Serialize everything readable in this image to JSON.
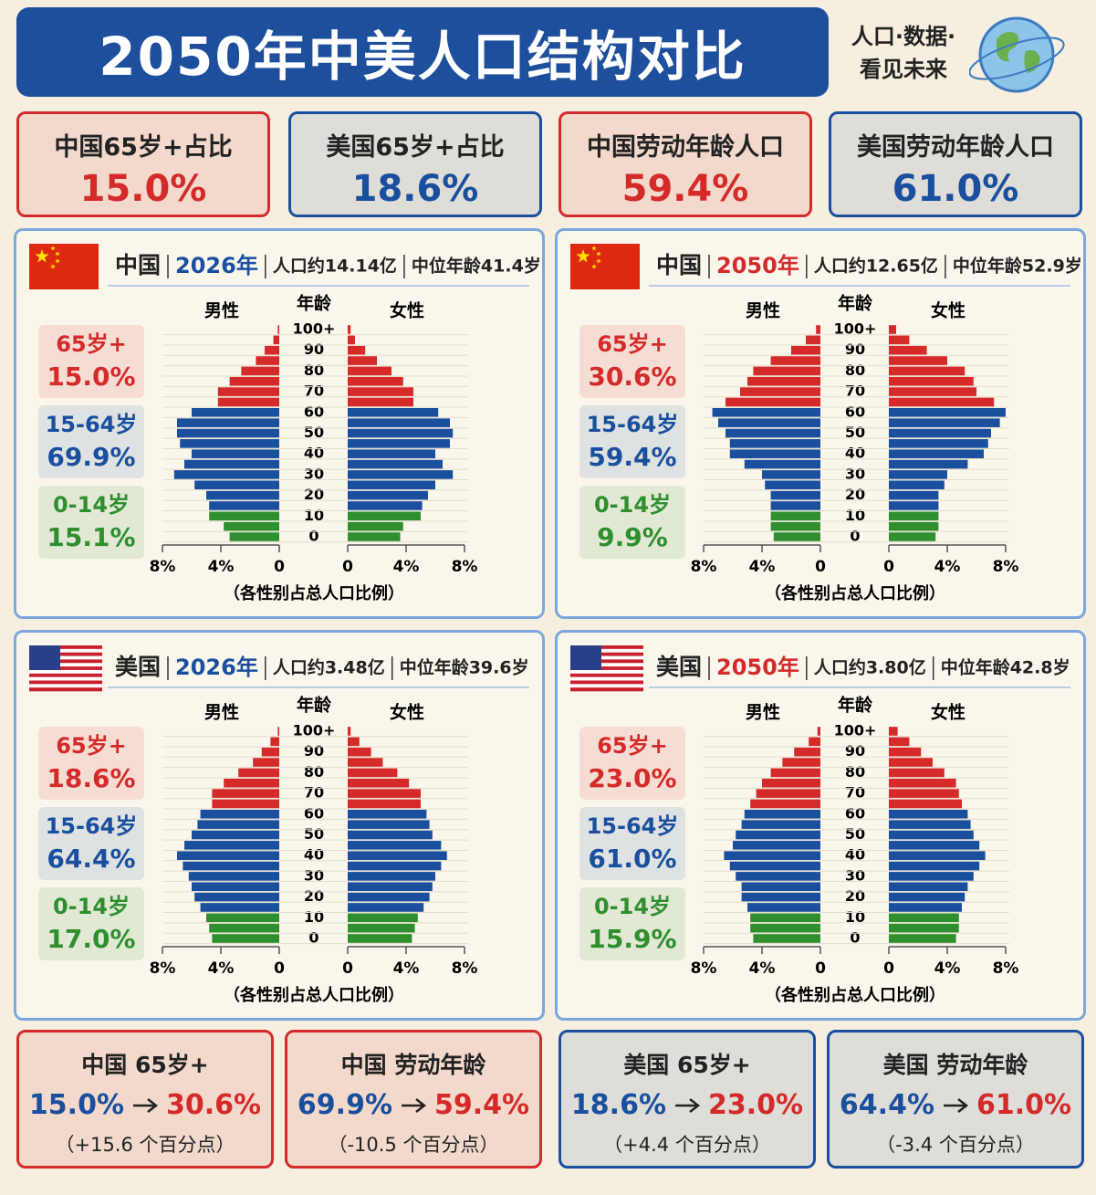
{
  "header": {
    "title": "2050年中美人口结构对比",
    "tagline": [
      "人口·数据·",
      "看见未来"
    ]
  },
  "kpis": [
    {
      "label": "中国65岁+占比",
      "value": "15.0%",
      "color": "#d42a2a"
    },
    {
      "label": "美国65岁+占比",
      "value": "18.6%",
      "color": "#1a4f9e"
    },
    {
      "label": "中国劳动年龄人口",
      "value": "59.4%",
      "color": "#d42a2a"
    },
    {
      "label": "美国劳动年龄人口",
      "value": "61.0%",
      "color": "#1a4f9e"
    }
  ],
  "chart_data": [
    {
      "type": "pyramid",
      "flag": "china",
      "country": "中国",
      "year": "2026年",
      "year_color": "#1a4f9e",
      "population": "人口约14.14亿",
      "median_age": "中位年龄41.4岁",
      "age_label": "年龄",
      "x_label": "（各性别占总人口比例）",
      "categories": [
        "0",
        null,
        "10",
        null,
        "20",
        null,
        "30",
        null,
        "40",
        null,
        "50",
        null,
        "60",
        null,
        "70",
        null,
        "80",
        null,
        "90",
        null,
        "100+"
      ],
      "colors": [
        "#2f8f2f",
        "#2f8f2f",
        "#2f8f2f",
        "#1a4f9e",
        "#1a4f9e",
        "#1a4f9e",
        "#1a4f9e",
        "#1a4f9e",
        "#1a4f9e",
        "#1a4f9e",
        "#1a4f9e",
        "#1a4f9e",
        "#1a4f9e",
        "#d42a2a",
        "#d42a2a",
        "#d42a2a",
        "#d42a2a",
        "#d42a2a",
        "#d42a2a",
        "#d42a2a",
        "#d42a2a"
      ],
      "series": [
        {
          "name": "男性",
          "values": [
            3.4,
            3.8,
            4.8,
            4.8,
            5.0,
            5.8,
            7.2,
            6.5,
            6.0,
            6.8,
            7.0,
            7.0,
            6.0,
            4.2,
            4.2,
            3.4,
            2.6,
            1.6,
            1.0,
            0.4,
            0.1
          ]
        },
        {
          "name": "女性",
          "values": [
            3.6,
            3.8,
            5.0,
            5.1,
            5.5,
            6.0,
            7.2,
            6.5,
            6.0,
            7.0,
            7.2,
            7.0,
            6.2,
            4.5,
            4.5,
            3.8,
            3.0,
            2.0,
            1.2,
            0.5,
            0.2
          ]
        }
      ],
      "xlim": [
        0,
        8
      ],
      "xticks": [
        0,
        {
          "value": 4,
          "label": "4%"
        },
        {
          "value": 8,
          "label": "8%"
        }
      ],
      "groups": [
        {
          "label": "65岁+",
          "value": 15.0,
          "value_label": "15.0%",
          "color": "#d42a2a"
        },
        {
          "label": "15-64岁",
          "value": 69.9,
          "value_label": "69.9%",
          "color": "#1a4f9e"
        },
        {
          "label": "0-14岁",
          "value": 15.1,
          "value_label": "15.1%",
          "color": "#2f8f2f"
        }
      ]
    },
    {
      "type": "pyramid",
      "flag": "china",
      "country": "中国",
      "year": "2050年",
      "year_color": "#d42a2a",
      "population": "人口约12.65亿",
      "median_age": "中位年龄52.9岁",
      "age_label": "年龄",
      "x_label": "（各性别占总人口比例）",
      "categories": [
        "0",
        null,
        "10",
        null,
        "20",
        null,
        "30",
        null,
        "40",
        null,
        "50",
        null,
        "60",
        null,
        "70",
        null,
        "80",
        null,
        "90",
        null,
        "100+"
      ],
      "colors": [
        "#2f8f2f",
        "#2f8f2f",
        "#2f8f2f",
        "#1a4f9e",
        "#1a4f9e",
        "#1a4f9e",
        "#1a4f9e",
        "#1a4f9e",
        "#1a4f9e",
        "#1a4f9e",
        "#1a4f9e",
        "#1a4f9e",
        "#1a4f9e",
        "#d42a2a",
        "#d42a2a",
        "#d42a2a",
        "#d42a2a",
        "#d42a2a",
        "#d42a2a",
        "#d42a2a",
        "#d42a2a"
      ],
      "series": [
        {
          "name": "男性",
          "values": [
            3.2,
            3.4,
            3.4,
            3.4,
            3.4,
            3.8,
            4.0,
            5.2,
            6.2,
            6.2,
            6.5,
            7.0,
            7.4,
            6.5,
            5.5,
            5.0,
            4.6,
            3.4,
            2.0,
            1.0,
            0.3
          ]
        },
        {
          "name": "女性",
          "values": [
            3.2,
            3.4,
            3.4,
            3.4,
            3.4,
            3.8,
            4.0,
            5.4,
            6.5,
            6.8,
            7.0,
            7.6,
            8.0,
            7.2,
            6.0,
            5.8,
            5.2,
            4.0,
            2.6,
            1.4,
            0.5
          ]
        }
      ],
      "xlim": [
        0,
        8
      ],
      "xticks": [
        0,
        {
          "value": 4,
          "label": "4%"
        },
        {
          "value": 8,
          "label": "8%"
        }
      ],
      "groups": [
        {
          "label": "65岁+",
          "value": 30.6,
          "value_label": "30.6%",
          "color": "#d42a2a"
        },
        {
          "label": "15-64岁",
          "value": 59.4,
          "value_label": "59.4%",
          "color": "#1a4f9e"
        },
        {
          "label": "0-14岁",
          "value": 9.9,
          "value_label": "9.9%",
          "color": "#2f8f2f"
        }
      ]
    },
    {
      "type": "pyramid",
      "flag": "usa",
      "country": "美国",
      "year": "2026年",
      "year_color": "#1a4f9e",
      "population": "人口约3.48亿",
      "median_age": "中位年龄39.6岁",
      "age_label": "年龄",
      "x_label": "（各性别占总人口比例）",
      "categories": [
        "0",
        null,
        "10",
        null,
        "20",
        null,
        "30",
        null,
        "40",
        null,
        "50",
        null,
        "60",
        null,
        "70",
        null,
        "80",
        null,
        "90",
        null,
        "100+"
      ],
      "colors": [
        "#2f8f2f",
        "#2f8f2f",
        "#2f8f2f",
        "#1a4f9e",
        "#1a4f9e",
        "#1a4f9e",
        "#1a4f9e",
        "#1a4f9e",
        "#1a4f9e",
        "#1a4f9e",
        "#1a4f9e",
        "#1a4f9e",
        "#1a4f9e",
        "#d42a2a",
        "#d42a2a",
        "#d42a2a",
        "#d42a2a",
        "#d42a2a",
        "#d42a2a",
        "#d42a2a",
        "#d42a2a"
      ],
      "series": [
        {
          "name": "男性",
          "values": [
            4.6,
            4.8,
            5.0,
            5.4,
            5.8,
            6.0,
            6.2,
            6.6,
            7.0,
            6.5,
            6.0,
            5.6,
            5.4,
            4.6,
            4.6,
            3.8,
            2.8,
            1.8,
            1.2,
            0.6,
            0.1
          ]
        },
        {
          "name": "女性",
          "values": [
            4.4,
            4.6,
            4.8,
            5.2,
            5.6,
            5.8,
            6.0,
            6.4,
            6.8,
            6.4,
            5.8,
            5.6,
            5.4,
            5.0,
            5.0,
            4.2,
            3.4,
            2.4,
            1.6,
            0.8,
            0.2
          ]
        }
      ],
      "xlim": [
        0,
        8
      ],
      "xticks": [
        0,
        {
          "value": 4,
          "label": "4%"
        },
        {
          "value": 8,
          "label": "8%"
        }
      ],
      "groups": [
        {
          "label": "65岁+",
          "value": 18.6,
          "value_label": "18.6%",
          "color": "#d42a2a"
        },
        {
          "label": "15-64岁",
          "value": 64.4,
          "value_label": "64.4%",
          "color": "#1a4f9e"
        },
        {
          "label": "0-14岁",
          "value": 17.0,
          "value_label": "17.0%",
          "color": "#2f8f2f"
        }
      ]
    },
    {
      "type": "pyramid",
      "flag": "usa",
      "country": "美国",
      "year": "2050年",
      "year_color": "#d42a2a",
      "population": "人口约3.80亿",
      "median_age": "中位年龄42.8岁",
      "age_label": "年龄",
      "x_label": "（各性别占总人口比例）",
      "categories": [
        "0",
        null,
        "10",
        null,
        "20",
        null,
        "30",
        null,
        "40",
        null,
        "50",
        null,
        "60",
        null,
        "70",
        null,
        "80",
        null,
        "90",
        null,
        "100+"
      ],
      "colors": [
        "#2f8f2f",
        "#2f8f2f",
        "#2f8f2f",
        "#1a4f9e",
        "#1a4f9e",
        "#1a4f9e",
        "#1a4f9e",
        "#1a4f9e",
        "#1a4f9e",
        "#1a4f9e",
        "#1a4f9e",
        "#1a4f9e",
        "#1a4f9e",
        "#d42a2a",
        "#d42a2a",
        "#d42a2a",
        "#d42a2a",
        "#d42a2a",
        "#d42a2a",
        "#d42a2a",
        "#d42a2a"
      ],
      "series": [
        {
          "name": "男性",
          "values": [
            4.6,
            4.8,
            4.8,
            5.0,
            5.4,
            5.4,
            5.8,
            6.2,
            6.6,
            6.0,
            5.8,
            5.4,
            5.2,
            4.8,
            4.4,
            4.0,
            3.4,
            2.6,
            1.8,
            0.8,
            0.2
          ]
        },
        {
          "name": "女性",
          "values": [
            4.6,
            4.8,
            4.8,
            5.0,
            5.2,
            5.4,
            5.8,
            6.2,
            6.6,
            6.2,
            5.8,
            5.6,
            5.4,
            5.0,
            4.8,
            4.6,
            3.8,
            3.0,
            2.2,
            1.4,
            0.6
          ]
        }
      ],
      "xlim": [
        0,
        8
      ],
      "xticks": [
        0,
        {
          "value": 4,
          "label": "4%"
        },
        {
          "value": 8,
          "label": "8%"
        }
      ],
      "groups": [
        {
          "label": "65岁+",
          "value": 23.0,
          "value_label": "23.0%",
          "color": "#d42a2a"
        },
        {
          "label": "15-64岁",
          "value": 61.0,
          "value_label": "61.0%",
          "color": "#1a4f9e"
        },
        {
          "label": "0-14岁",
          "value": 15.9,
          "value_label": "15.9%",
          "color": "#2f8f2f"
        }
      ]
    }
  ],
  "changes": [
    {
      "title": "中国 65岁+",
      "from": "15.0%",
      "to": "30.6%",
      "delta": "（+15.6 个百分点）",
      "color": "#d42a2a"
    },
    {
      "title": "中国 劳动年龄",
      "from": "69.9%",
      "to": "59.4%",
      "delta": "（-10.5 个百分点）",
      "color": "#d42a2a"
    },
    {
      "title": "美国 65岁+",
      "from": "18.6%",
      "to": "23.0%",
      "delta": "（+4.4 个百分点）",
      "color": "#1a4f9e"
    },
    {
      "title": "美国 劳动年龄",
      "from": "64.4%",
      "to": "61.0%",
      "delta": "（-3.4 个百分点）",
      "color": "#1a4f9e"
    }
  ]
}
